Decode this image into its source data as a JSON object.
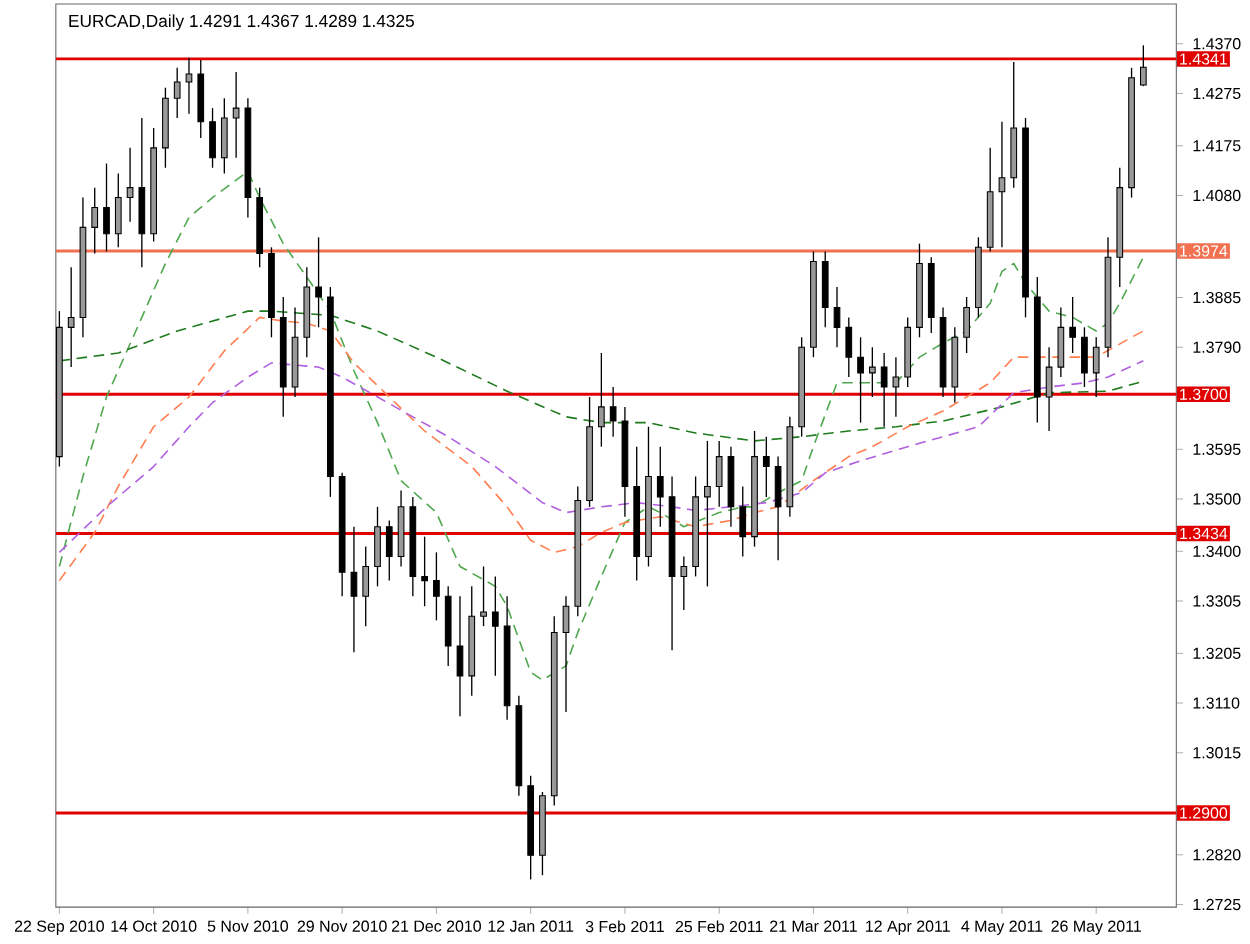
{
  "chart_data": {
    "type": "candlestick",
    "title": "EURCAD,Daily 1.4291 1.4367 1.4289 1.4325",
    "color": "#000000",
    "categories": [
      "22 Sep 2010",
      null,
      null,
      null,
      null,
      null,
      null,
      null,
      "14 Oct 2010",
      null,
      null,
      null,
      null,
      null,
      null,
      null,
      "5 Nov 2010",
      null,
      null,
      null,
      null,
      null,
      null,
      null,
      "29 Nov 2010",
      null,
      null,
      null,
      null,
      null,
      null,
      null,
      "21 Dec 2010",
      null,
      null,
      null,
      null,
      null,
      null,
      null,
      "12 Jan 2011",
      null,
      null,
      null,
      null,
      null,
      null,
      null,
      "3 Feb 2011",
      null,
      null,
      null,
      null,
      null,
      null,
      null,
      "25 Feb 2011",
      null,
      null,
      null,
      null,
      null,
      null,
      null,
      "21 Mar 2011",
      null,
      null,
      null,
      null,
      null,
      null,
      null,
      "12 Apr 2011",
      null,
      null,
      null,
      null,
      null,
      null,
      null,
      "4 May 2011",
      null,
      null,
      null,
      null,
      null,
      null,
      null,
      "26 May 2011",
      null,
      null,
      null,
      null
    ],
    "ohlc": [
      [
        1.3581,
        1.3859,
        1.3562,
        1.3828
      ],
      [
        1.3828,
        1.3943,
        1.3752,
        1.3847
      ],
      [
        1.3847,
        1.4076,
        1.3809,
        1.4019
      ],
      [
        1.4019,
        1.4095,
        1.3969,
        1.4057
      ],
      [
        1.4057,
        1.4141,
        1.3973,
        1.4007
      ],
      [
        1.4007,
        1.4122,
        1.3981,
        1.4076
      ],
      [
        1.4076,
        1.4171,
        1.403,
        1.4095
      ],
      [
        1.4095,
        1.4228,
        1.3943,
        1.4007
      ],
      [
        1.4007,
        1.4209,
        1.3992,
        1.4171
      ],
      [
        1.4171,
        1.4286,
        1.4133,
        1.4266
      ],
      [
        1.4266,
        1.4324,
        1.4228,
        1.4297
      ],
      [
        1.4297,
        1.4343,
        1.4236,
        1.4312
      ],
      [
        1.4312,
        1.4339,
        1.419,
        1.4221
      ],
      [
        1.4221,
        1.4247,
        1.4133,
        1.4152
      ],
      [
        1.4152,
        1.4266,
        1.4122,
        1.4228
      ],
      [
        1.4228,
        1.4316,
        1.4152,
        1.4247
      ],
      [
        1.4247,
        1.4266,
        1.4038,
        1.4076
      ],
      [
        1.4076,
        1.4095,
        1.3943,
        1.3969
      ],
      [
        1.3969,
        1.3981,
        1.3809,
        1.3847
      ],
      [
        1.3847,
        1.3886,
        1.3657,
        1.3714
      ],
      [
        1.3714,
        1.3866,
        1.3695,
        1.3809
      ],
      [
        1.3809,
        1.3943,
        1.3771,
        1.3905
      ],
      [
        1.3905,
        1.4,
        1.3828,
        1.3886
      ],
      [
        1.3886,
        1.3905,
        1.3504,
        1.3543
      ],
      [
        1.3543,
        1.355,
        1.3314,
        1.336
      ],
      [
        1.336,
        1.3447,
        1.3207,
        1.3314
      ],
      [
        1.3314,
        1.3409,
        1.3257,
        1.3371
      ],
      [
        1.3371,
        1.3485,
        1.3333,
        1.3447
      ],
      [
        1.3447,
        1.3459,
        1.3344,
        1.339
      ],
      [
        1.339,
        1.3516,
        1.3371,
        1.3485
      ],
      [
        1.3485,
        1.3504,
        1.3314,
        1.3352
      ],
      [
        1.3352,
        1.3428,
        1.3295,
        1.3344
      ],
      [
        1.3344,
        1.3398,
        1.3268,
        1.3314
      ],
      [
        1.3314,
        1.3333,
        1.3181,
        1.3219
      ],
      [
        1.3219,
        1.3314,
        1.3085,
        1.3162
      ],
      [
        1.3162,
        1.3333,
        1.3124,
        1.3276
      ],
      [
        1.3276,
        1.3371,
        1.3257,
        1.3284
      ],
      [
        1.3284,
        1.3352,
        1.3162,
        1.3257
      ],
      [
        1.3257,
        1.3314,
        1.3078,
        1.3105
      ],
      [
        1.3105,
        1.3124,
        1.2933,
        1.2952
      ],
      [
        1.2952,
        1.2971,
        1.2773,
        1.2819
      ],
      [
        1.2819,
        1.294,
        1.2781,
        1.2933
      ],
      [
        1.2933,
        1.3276,
        1.2914,
        1.3245
      ],
      [
        1.3245,
        1.3314,
        1.3093,
        1.3295
      ],
      [
        1.3295,
        1.3524,
        1.3276,
        1.3497
      ],
      [
        1.3497,
        1.3695,
        1.3485,
        1.3638
      ],
      [
        1.3638,
        1.3779,
        1.36,
        1.3676
      ],
      [
        1.3676,
        1.3714,
        1.3619,
        1.3649
      ],
      [
        1.3649,
        1.3676,
        1.3466,
        1.3524
      ],
      [
        1.3524,
        1.36,
        1.3344,
        1.339
      ],
      [
        1.339,
        1.3638,
        1.3371,
        1.3543
      ],
      [
        1.3543,
        1.36,
        1.3447,
        1.3504
      ],
      [
        1.3504,
        1.3543,
        1.3211,
        1.3352
      ],
      [
        1.3352,
        1.339,
        1.3288,
        1.3371
      ],
      [
        1.3371,
        1.3543,
        1.3352,
        1.3504
      ],
      [
        1.3504,
        1.3611,
        1.3333,
        1.3524
      ],
      [
        1.3524,
        1.3611,
        1.3485,
        1.3581
      ],
      [
        1.3581,
        1.36,
        1.3447,
        1.3485
      ],
      [
        1.3485,
        1.3524,
        1.339,
        1.3428
      ],
      [
        1.3428,
        1.363,
        1.3409,
        1.3581
      ],
      [
        1.3581,
        1.3619,
        1.3504,
        1.3562
      ],
      [
        1.3562,
        1.3581,
        1.3383,
        1.3485
      ],
      [
        1.3485,
        1.3657,
        1.3466,
        1.3638
      ],
      [
        1.3638,
        1.3809,
        1.3619,
        1.379
      ],
      [
        1.379,
        1.3973,
        1.3771,
        1.3954
      ],
      [
        1.3954,
        1.3973,
        1.3828,
        1.3866
      ],
      [
        1.3866,
        1.3905,
        1.379,
        1.3828
      ],
      [
        1.3828,
        1.3847,
        1.3733,
        1.3771
      ],
      [
        1.3771,
        1.3809,
        1.3646,
        1.3741
      ],
      [
        1.3741,
        1.379,
        1.3695,
        1.3752
      ],
      [
        1.3752,
        1.3779,
        1.3638,
        1.3714
      ],
      [
        1.3714,
        1.3771,
        1.3657,
        1.3733
      ],
      [
        1.3733,
        1.3847,
        1.3714,
        1.3828
      ],
      [
        1.3828,
        1.3988,
        1.3809,
        1.395
      ],
      [
        1.395,
        1.3962,
        1.3817,
        1.3847
      ],
      [
        1.3847,
        1.3866,
        1.3695,
        1.3714
      ],
      [
        1.3714,
        1.3828,
        1.3684,
        1.3809
      ],
      [
        1.3809,
        1.3886,
        1.3779,
        1.3866
      ],
      [
        1.3866,
        1.4,
        1.3847,
        1.3981
      ],
      [
        1.3981,
        1.4171,
        1.3973,
        1.4087
      ],
      [
        1.4087,
        1.4221,
        1.3981,
        1.4114
      ],
      [
        1.4114,
        1.4335,
        1.4095,
        1.4209
      ],
      [
        1.4209,
        1.4228,
        1.3847,
        1.3886
      ],
      [
        1.3886,
        1.3924,
        1.3646,
        1.3695
      ],
      [
        1.3695,
        1.379,
        1.363,
        1.3752
      ],
      [
        1.3752,
        1.3866,
        1.3733,
        1.3828
      ],
      [
        1.3828,
        1.3886,
        1.3779,
        1.3809
      ],
      [
        1.3809,
        1.3828,
        1.3714,
        1.3741
      ],
      [
        1.3741,
        1.3809,
        1.3695,
        1.379
      ],
      [
        1.379,
        1.4,
        1.3771,
        1.3962
      ],
      [
        1.3962,
        1.4133,
        1.3905,
        1.4095
      ],
      [
        1.4095,
        1.4324,
        1.4076,
        1.4305
      ],
      [
        1.4291,
        1.4367,
        1.4289,
        1.4325
      ]
    ],
    "ylim": [
      1.272,
      1.4446
    ],
    "yticks": [
      {
        "value": 1.437,
        "label": "1.4370"
      },
      1.4275,
      1.4175,
      {
        "value": 1.408,
        "label": "1.4080"
      },
      1.3885,
      {
        "value": 1.379,
        "label": "1.3790"
      },
      1.3595,
      {
        "value": 1.35,
        "label": "1.3500"
      },
      {
        "value": 1.34,
        "label": "1.3400"
      },
      1.3305,
      1.3205,
      {
        "value": 1.311,
        "label": "1.3110"
      },
      1.3015,
      {
        "value": 1.282,
        "label": "1.2820"
      },
      1.2725
    ],
    "series": [
      {
        "type": "line",
        "color": "#4fa84f",
        "line_style": "dashed",
        "values": [
          1.3371,
          null,
          1.3543,
          null,
          1.3695,
          null,
          null,
          1.3847,
          null,
          1.395,
          null,
          1.4038,
          null,
          1.4076,
          null,
          null,
          1.4126,
          1.4076,
          null,
          1.3988,
          null,
          1.3924,
          null,
          1.3859,
          null,
          1.3745,
          null,
          1.3646,
          null,
          1.3535,
          null,
          null,
          1.3474,
          null,
          1.3371,
          null,
          null,
          1.3333,
          1.3295,
          null,
          1.3169,
          1.3154,
          null,
          1.3181,
          1.3245,
          null,
          1.3352,
          null,
          1.3455,
          null,
          1.3485,
          1.3474,
          null,
          1.3447,
          null,
          null,
          1.3474,
          null,
          1.3485,
          1.3485,
          null,
          1.3512,
          null,
          1.3535,
          1.36,
          null,
          1.3722,
          null,
          null,
          1.3722,
          null,
          1.3722,
          null,
          1.3771,
          null,
          1.3798,
          null,
          1.3821,
          null,
          1.3874,
          1.3935,
          1.395,
          1.3912,
          null,
          1.3859,
          null,
          1.3847,
          null,
          1.3821,
          1.3836,
          1.3874,
          null,
          1.3962
        ]
      },
      {
        "type": "line",
        "color": "#1e7b1e",
        "line_style": "dashed",
        "values": [
          1.3764,
          null,
          null,
          null,
          null,
          1.3779,
          null,
          null,
          null,
          null,
          1.3821,
          null,
          null,
          null,
          null,
          null,
          1.3859,
          null,
          1.3859,
          null,
          null,
          null,
          null,
          1.3851,
          null,
          null,
          null,
          1.3821,
          null,
          null,
          null,
          null,
          1.3771,
          null,
          null,
          null,
          null,
          null,
          1.3706,
          null,
          null,
          null,
          null,
          1.3657,
          null,
          null,
          1.3646,
          null,
          null,
          null,
          1.3646,
          null,
          null,
          null,
          1.3626,
          null,
          null,
          null,
          null,
          1.3611,
          null,
          null,
          null,
          1.3619,
          null,
          null,
          null,
          1.363,
          null,
          null,
          null,
          1.3638,
          null,
          null,
          null,
          1.3649,
          null,
          null,
          null,
          null,
          1.3676,
          null,
          null,
          null,
          1.3703,
          null,
          null,
          null,
          null,
          1.3706,
          null,
          null,
          1.3725
        ]
      },
      {
        "type": "line",
        "color": "#ff7f50",
        "line_style": "dashed",
        "values": [
          1.3344,
          null,
          null,
          1.3436,
          null,
          1.3524,
          null,
          null,
          1.3638,
          null,
          null,
          1.3695,
          null,
          null,
          1.3783,
          null,
          null,
          1.3847,
          null,
          1.384,
          null,
          1.3836,
          null,
          1.3821,
          null,
          1.376,
          null,
          null,
          1.3695,
          null,
          null,
          1.363,
          null,
          null,
          null,
          1.3562,
          null,
          null,
          1.3485,
          null,
          1.3421,
          null,
          1.3398,
          null,
          1.3409,
          null,
          1.3436,
          null,
          1.3455,
          null,
          null,
          1.3466,
          null,
          null,
          1.3447,
          null,
          null,
          1.3459,
          null,
          1.3474,
          null,
          1.3485,
          null,
          null,
          1.3535,
          null,
          null,
          1.3581,
          null,
          1.36,
          null,
          null,
          1.3638,
          null,
          null,
          1.3668,
          null,
          null,
          null,
          1.3722,
          null,
          1.3771,
          null,
          null,
          null,
          1.3771,
          null,
          null,
          1.3771,
          null,
          null,
          1.3809,
          1.3821
        ]
      },
      {
        "type": "line",
        "color": "#b060e0",
        "line_style": "dashed",
        "values": [
          1.3398,
          null,
          null,
          null,
          1.3485,
          null,
          null,
          null,
          1.3562,
          null,
          null,
          1.3638,
          null,
          1.3684,
          null,
          null,
          1.3733,
          null,
          1.376,
          null,
          null,
          null,
          1.3752,
          null,
          1.3733,
          null,
          null,
          1.3695,
          null,
          null,
          1.3657,
          null,
          null,
          1.3619,
          null,
          null,
          null,
          1.3562,
          null,
          null,
          null,
          1.3493,
          null,
          1.3474,
          null,
          null,
          1.3485,
          null,
          null,
          1.3493,
          null,
          null,
          1.3485,
          null,
          1.3478,
          null,
          null,
          1.3485,
          null,
          null,
          1.3493,
          null,
          null,
          1.3512,
          null,
          1.355,
          null,
          null,
          1.3573,
          null,
          null,
          null,
          1.36,
          null,
          null,
          1.3619,
          null,
          null,
          1.3638,
          null,
          null,
          1.3703,
          null,
          null,
          1.3714,
          null,
          null,
          1.3722,
          null,
          1.3733,
          null,
          null,
          1.3764
        ]
      }
    ],
    "ref_lines": [
      {
        "axis": "y",
        "value": 1.4341,
        "label": "1.4341",
        "color": "#e00000"
      },
      {
        "axis": "y",
        "value": 1.3974,
        "label": "1.3974",
        "color": "#f07050"
      },
      {
        "axis": "y",
        "value": 1.37,
        "label": "1.3700",
        "color": "#e00000"
      },
      {
        "axis": "y",
        "value": 1.3434,
        "label": "1.3434",
        "color": "#e00000"
      },
      {
        "axis": "y",
        "value": 1.29,
        "label": "1.2900",
        "color": "#e00000"
      }
    ]
  }
}
